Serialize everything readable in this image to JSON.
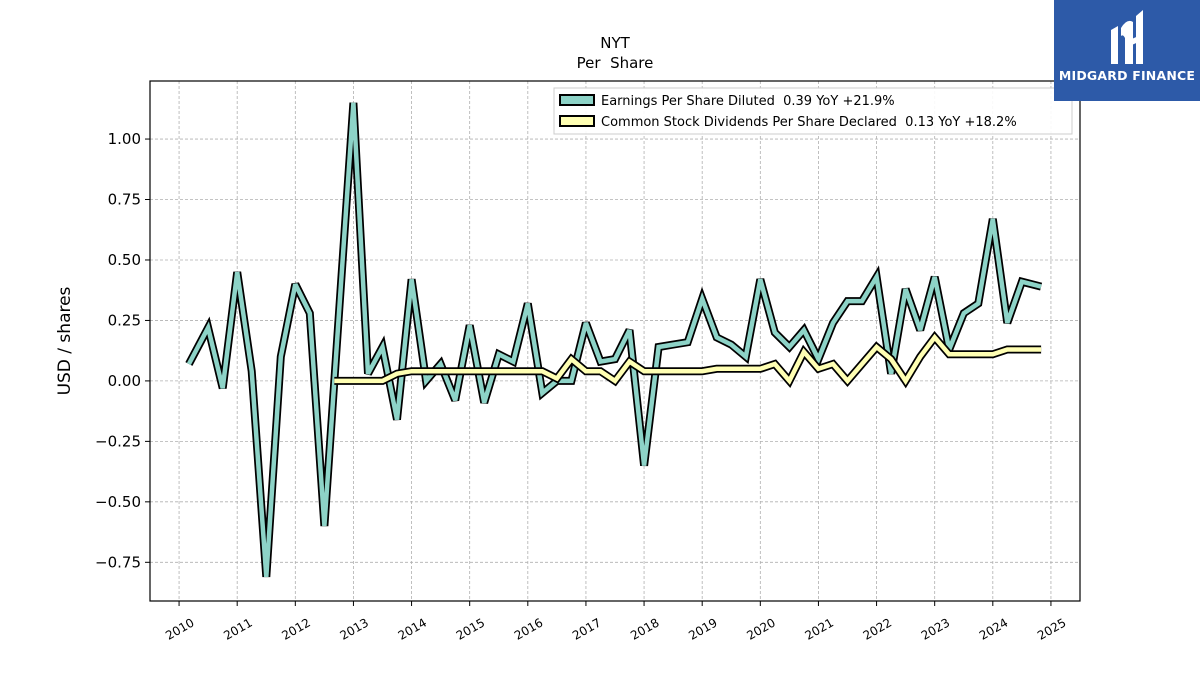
{
  "chart_data": {
    "type": "line",
    "title": "NYT",
    "subtitle": "Per  Share",
    "ylabel": "USD / shares",
    "xlabel": "",
    "xlim": [
      2009.5,
      2025.5
    ],
    "ylim": [
      -0.91,
      1.24
    ],
    "yticks": [
      "−0.75",
      "−0.50",
      "−0.25",
      "0.00",
      "0.25",
      "0.50",
      "0.75",
      "1.00"
    ],
    "ytick_values": [
      -0.75,
      -0.5,
      -0.25,
      0,
      0.25,
      0.5,
      0.75,
      1.0
    ],
    "xticks": [
      "2010",
      "2011",
      "2012",
      "2013",
      "2014",
      "2015",
      "2016",
      "2017",
      "2018",
      "2019",
      "2020",
      "2021",
      "2022",
      "2023",
      "2024",
      "2025"
    ],
    "xtick_values": [
      2010,
      2011,
      2012,
      2013,
      2014,
      2015,
      2016,
      2017,
      2018,
      2019,
      2020,
      2021,
      2022,
      2023,
      2024,
      2025
    ],
    "grid": true,
    "legend_position": "top-right",
    "series": [
      {
        "name": "Earnings Per Share Diluted  0.39 YoY +21.9%",
        "color": "#8dd3c7",
        "x": [
          2010.17,
          2010.5,
          2010.75,
          2011.0,
          2011.25,
          2011.5,
          2011.75,
          2012.0,
          2012.25,
          2012.5,
          2013.0,
          2013.25,
          2013.5,
          2013.75,
          2014.0,
          2014.25,
          2014.5,
          2014.75,
          2015.0,
          2015.25,
          2015.5,
          2015.75,
          2016.0,
          2016.25,
          2016.5,
          2016.75,
          2017.0,
          2017.25,
          2017.5,
          2017.75,
          2018.0,
          2018.25,
          2018.5,
          2018.75,
          2019.0,
          2019.25,
          2019.5,
          2019.75,
          2020.0,
          2020.25,
          2020.5,
          2020.75,
          2021.0,
          2021.25,
          2021.5,
          2021.75,
          2022.0,
          2022.25,
          2022.5,
          2022.75,
          2023.0,
          2023.25,
          2023.5,
          2023.75,
          2024.0,
          2024.25,
          2024.5,
          2024.83
        ],
        "values": [
          0.07,
          0.22,
          -0.03,
          0.45,
          0.04,
          -0.81,
          0.1,
          0.4,
          0.28,
          -0.6,
          1.15,
          0.03,
          0.14,
          -0.16,
          0.42,
          0.0,
          0.07,
          -0.08,
          0.23,
          -0.09,
          0.11,
          0.08,
          0.32,
          -0.05,
          0.0,
          0.0,
          0.24,
          0.08,
          0.09,
          0.21,
          -0.35,
          0.14,
          0.15,
          0.16,
          0.34,
          0.18,
          0.15,
          0.1,
          0.42,
          0.2,
          0.14,
          0.21,
          0.09,
          0.24,
          0.33,
          0.33,
          0.43,
          0.03,
          0.38,
          0.21,
          0.43,
          0.13,
          0.28,
          0.32,
          0.67,
          0.24,
          0.41,
          0.39
        ]
      },
      {
        "name": "Common Stock Dividends Per Share Declared  0.13 YoY +18.2%",
        "color": "#ffffb3",
        "x": [
          2012.67,
          2013.5,
          2013.75,
          2014.0,
          2019.0,
          2019.25,
          2020.0,
          2020.25,
          2020.5,
          2020.75,
          2021.0,
          2021.25,
          2021.5,
          2021.75,
          2022.0,
          2022.25,
          2022.5,
          2022.75,
          2023.0,
          2023.25,
          2024.0,
          2024.25,
          2024.83
        ],
        "values": [
          0.0,
          0.0,
          0.03,
          0.04,
          0.04,
          0.05,
          0.05,
          0.07,
          0.0,
          0.12,
          0.05,
          0.07,
          0.0,
          0.07,
          0.14,
          0.09,
          0.0,
          0.1,
          0.18,
          0.11,
          0.11,
          0.13,
          0.13
        ],
        "extra_points": [
          [
            2015.0,
            0.04
          ],
          [
            2016.25,
            0.04
          ],
          [
            2016.5,
            0.01
          ],
          [
            2016.75,
            0.09
          ],
          [
            2017.0,
            0.04
          ],
          [
            2017.25,
            0.04
          ],
          [
            2017.5,
            0.0
          ],
          [
            2017.75,
            0.08
          ],
          [
            2018.0,
            0.04
          ]
        ]
      }
    ]
  },
  "logo": {
    "text": "MIDGARD FINANCE",
    "background": "#2d5aa8"
  }
}
